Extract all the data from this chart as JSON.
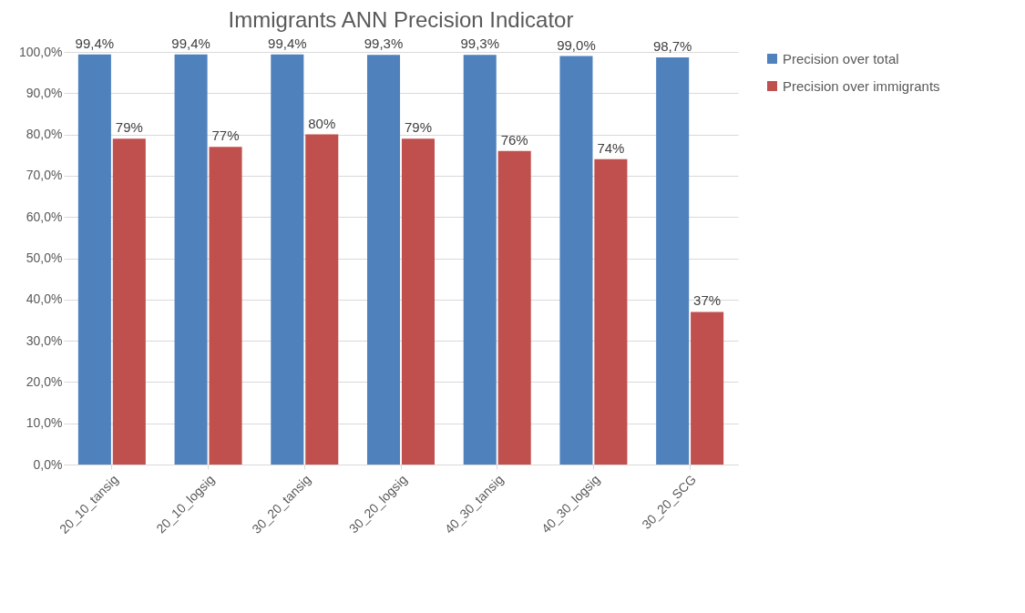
{
  "chart_data": {
    "type": "bar",
    "title": "Immigrants ANN Precision Indicator",
    "categories": [
      "20_10_tansig",
      "20_10_logsig",
      "30_20_tansig",
      "30_20_logsig",
      "40_30_tansig",
      "40_30_logsig",
      "30_20_SCG"
    ],
    "series": [
      {
        "name": "Precision over total",
        "color": "#4f81bd",
        "values": [
          99.4,
          99.4,
          99.4,
          99.3,
          99.3,
          99.0,
          98.7
        ],
        "value_labels": [
          "99,4%",
          "99,4%",
          "99,4%",
          "99,3%",
          "99,3%",
          "99,0%",
          "98,7%"
        ]
      },
      {
        "name": "Precision over immigrants",
        "color": "#c0504d",
        "values": [
          79,
          77,
          80,
          79,
          76,
          74,
          37
        ],
        "value_labels": [
          "79%",
          "77%",
          "80%",
          "79%",
          "76%",
          "74%",
          "37%"
        ]
      }
    ],
    "ylim": [
      0,
      100
    ],
    "yticks": [
      {
        "value": 0,
        "label": "0,0%"
      },
      {
        "value": 10,
        "label": "10,0%"
      },
      {
        "value": 20,
        "label": "20,0%"
      },
      {
        "value": 30,
        "label": "30,0%"
      },
      {
        "value": 40,
        "label": "40,0%"
      },
      {
        "value": 50,
        "label": "50,0%"
      },
      {
        "value": 60,
        "label": "60,0%"
      },
      {
        "value": 70,
        "label": "70,0%"
      },
      {
        "value": 80,
        "label": "80,0%"
      },
      {
        "value": 90,
        "label": "90,0%"
      },
      {
        "value": 100,
        "label": "100,0%"
      }
    ],
    "grid": "y",
    "legend": "right"
  }
}
